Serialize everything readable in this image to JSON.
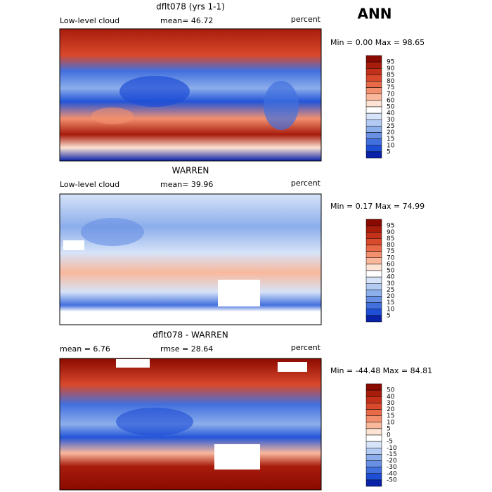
{
  "title": "ANN",
  "panels": [
    {
      "title": "dflt078 (yrs 1-1)",
      "left": "Low-level cloud",
      "center": "mean=  46.72",
      "units": "percent",
      "stats": "Min =   0.00 Max =  98.65",
      "colorbar": {
        "levels": [
          95,
          90,
          85,
          80,
          75,
          70,
          60,
          50,
          40,
          30,
          25,
          20,
          15,
          10,
          5
        ],
        "colors": [
          "#8b0a00",
          "#a81c0c",
          "#c4311a",
          "#d9492c",
          "#e86a48",
          "#f28f6e",
          "#f9b89c",
          "#fde3d3",
          "#ffffff",
          "#d6e3f8",
          "#b3caf2",
          "#8caeeb",
          "#6890e5",
          "#4270de",
          "#1f4ed6",
          "#0a22a8"
        ]
      }
    },
    {
      "title": "WARREN",
      "left": "Low-level cloud",
      "center": "mean=  39.96",
      "units": "percent",
      "stats": "Min =   0.17 Max =  74.99",
      "colorbar": {
        "levels": [
          95,
          90,
          85,
          80,
          75,
          70,
          60,
          50,
          40,
          30,
          25,
          20,
          15,
          10,
          5
        ],
        "colors": [
          "#8b0a00",
          "#a81c0c",
          "#c4311a",
          "#d9492c",
          "#e86a48",
          "#f28f6e",
          "#f9b89c",
          "#fde3d3",
          "#ffffff",
          "#d6e3f8",
          "#b3caf2",
          "#8caeeb",
          "#6890e5",
          "#4270de",
          "#1f4ed6",
          "#0a22a8"
        ]
      }
    },
    {
      "title": "dflt078 - WARREN",
      "left": "mean =   6.76",
      "center": "rmse =  28.64",
      "units": "percent",
      "stats": "Min = -44.48 Max =  84.81",
      "colorbar": {
        "levels": [
          50,
          40,
          30,
          20,
          15,
          10,
          5,
          0,
          -5,
          -10,
          -15,
          -20,
          -30,
          -40,
          -50
        ],
        "colors": [
          "#8b0a00",
          "#a81c0c",
          "#c4311a",
          "#d9492c",
          "#e86a48",
          "#f28f6e",
          "#f9b89c",
          "#fde3d3",
          "#ffffff",
          "#d6e3f8",
          "#b3caf2",
          "#8caeeb",
          "#6890e5",
          "#4270de",
          "#1f4ed6",
          "#0a22a8"
        ]
      }
    }
  ]
}
